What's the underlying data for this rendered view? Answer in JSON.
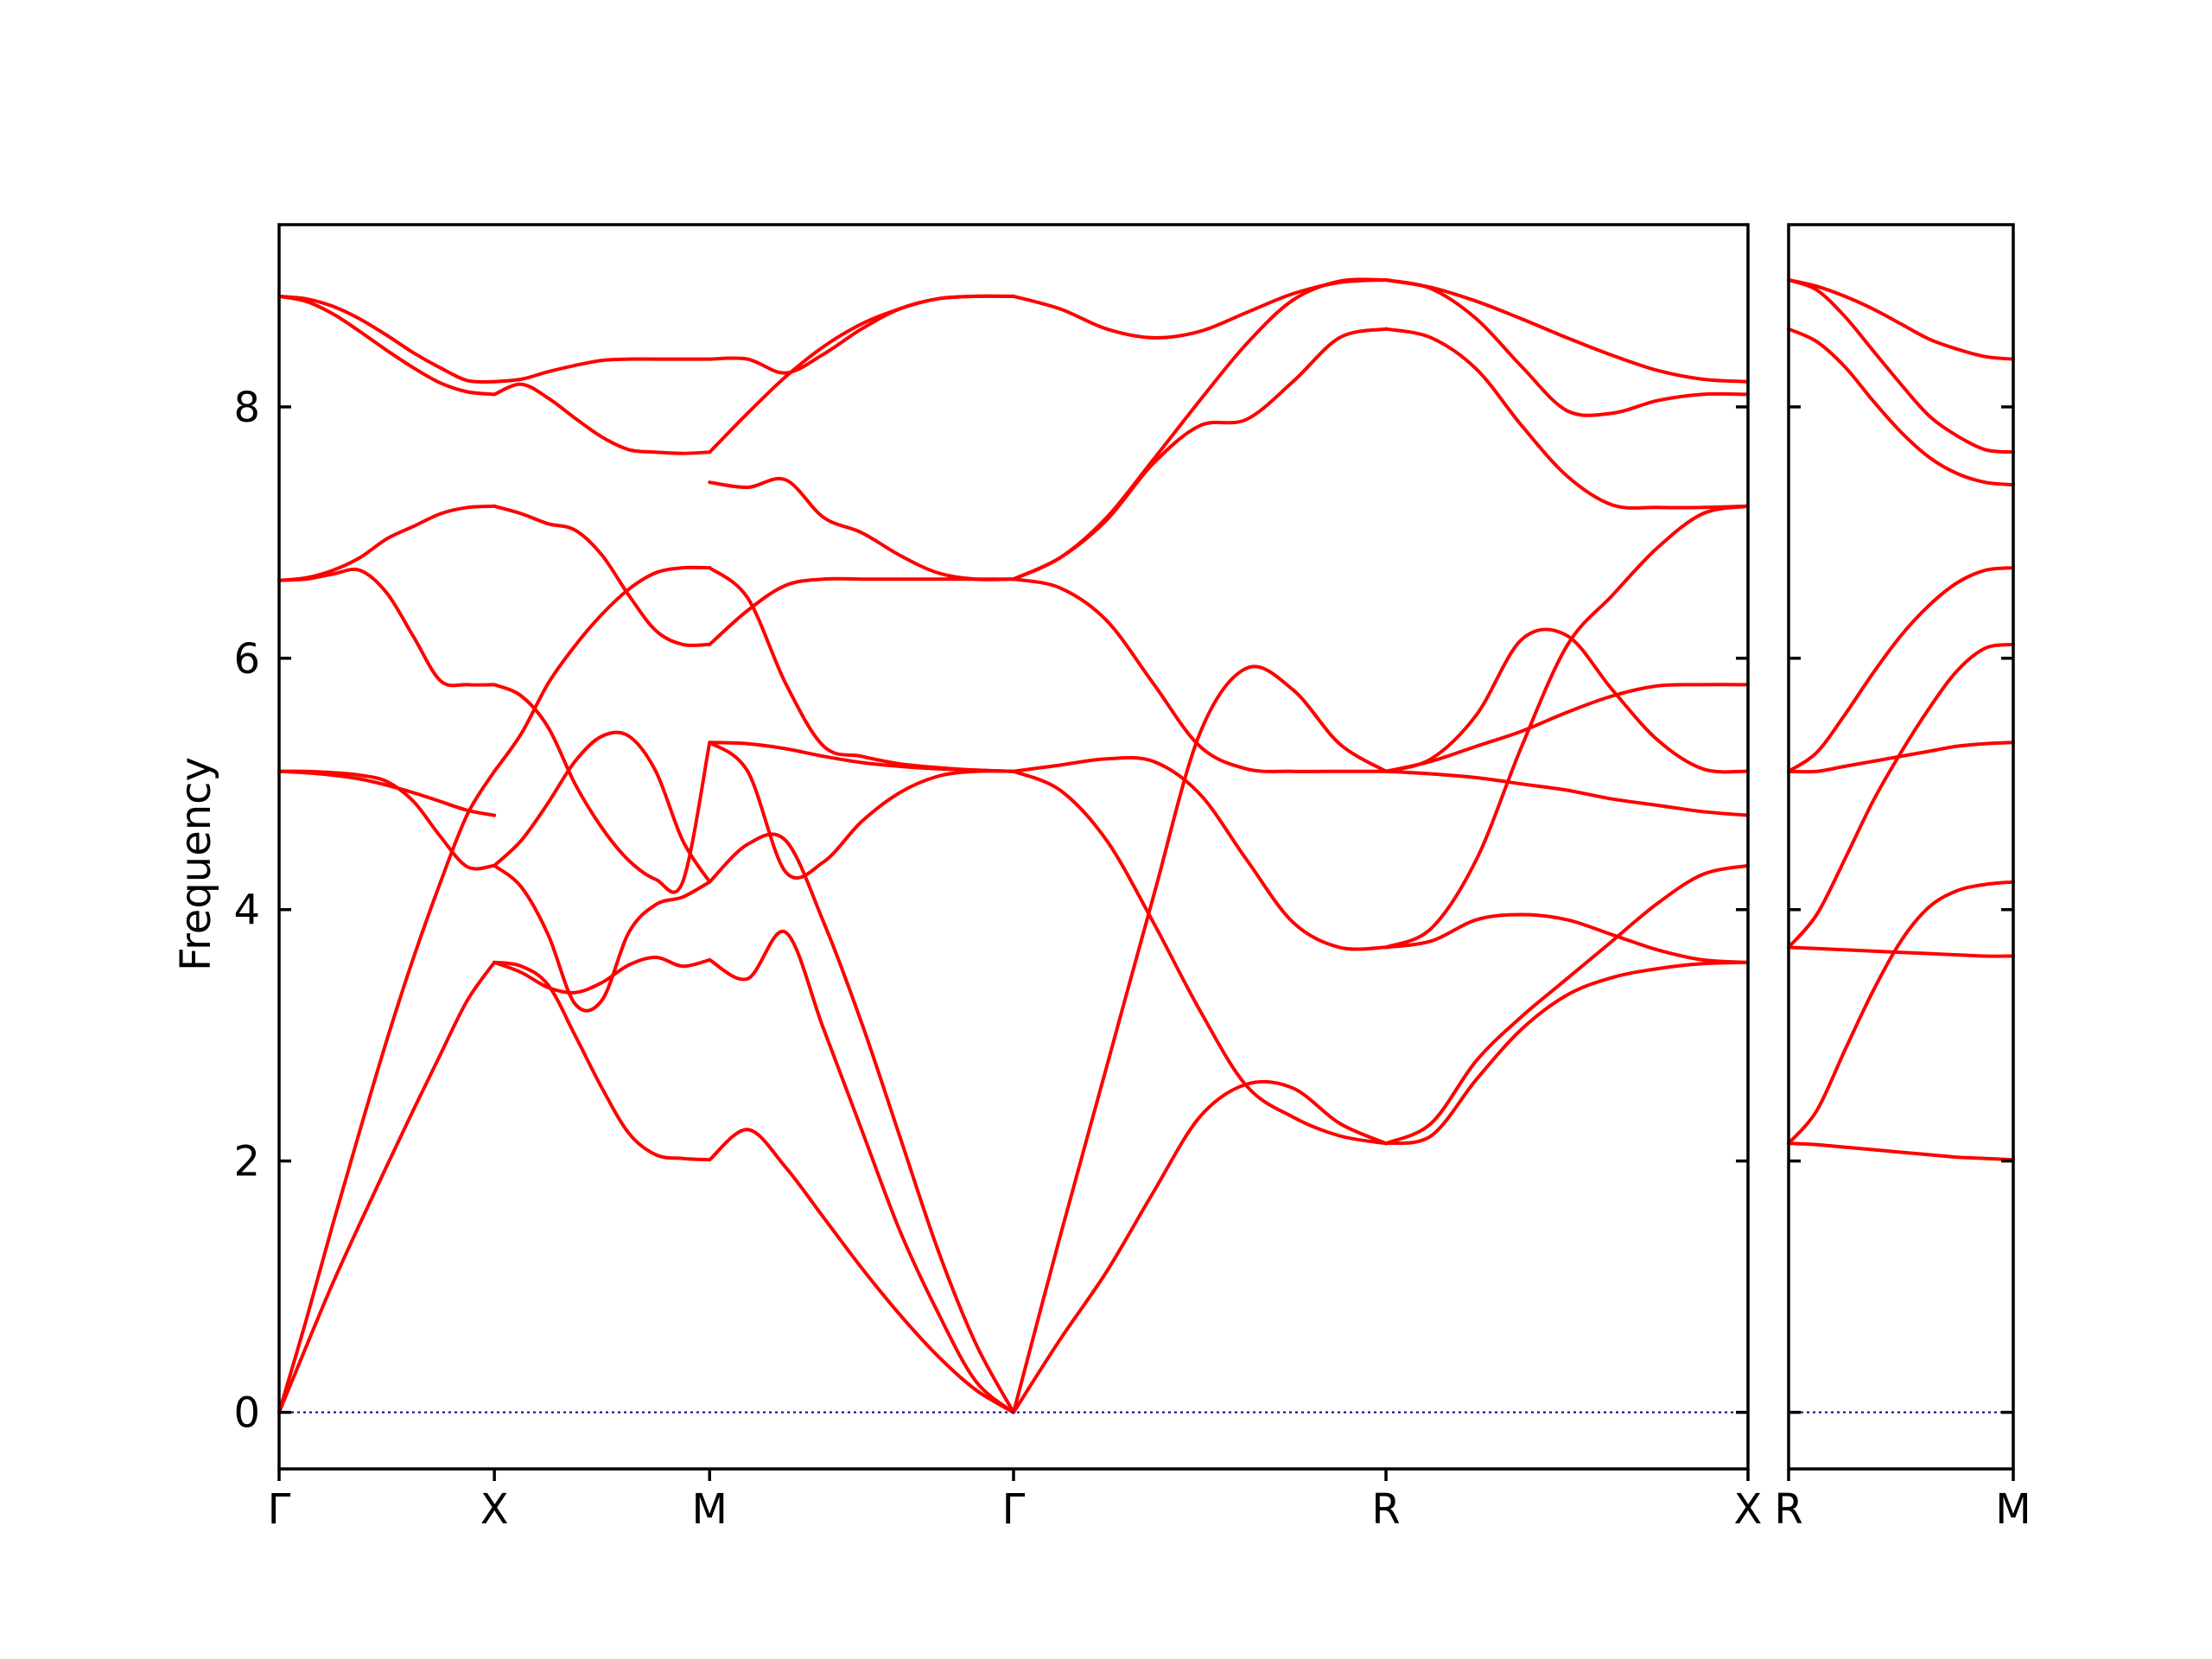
{
  "chart_data": {
    "type": "line",
    "ylabel": "Frequency",
    "ylim": [
      -0.45,
      9.45
    ],
    "yticks": [
      0,
      2,
      4,
      6,
      8
    ],
    "grid": false,
    "legend": "none",
    "colors": {
      "bands": "#ff0000",
      "zero_line": "#00008b",
      "axes": "#000000"
    },
    "panels": [
      {
        "name": "left",
        "x_range": [
          0,
          4
        ],
        "xtick_positions": [
          0,
          0.5862,
          1.1724,
          2.0,
          3.0142,
          4.0
        ],
        "xtick_labels": [
          "Γ",
          "X",
          "M",
          "Γ",
          "R",
          "X"
        ],
        "segments": [
          {
            "x": [
              0,
              0.0733,
              0.1466,
              0.2198,
              0.2931,
              0.3664,
              0.4397,
              0.5129,
              0.5862
            ],
            "bands": [
              [
                0.0,
                0.52,
                1.03,
                1.5,
                1.96,
                2.41,
                2.85,
                3.28,
                3.58
              ],
              [
                0.0,
                0.73,
                1.5,
                2.24,
                2.96,
                3.62,
                4.22,
                4.76,
                5.1
              ],
              [
                5.1,
                5.09,
                5.07,
                5.04,
                4.99,
                4.93,
                4.86,
                4.79,
                4.75
              ],
              [
                5.1,
                5.1,
                5.09,
                5.07,
                5.02,
                4.86,
                4.58,
                4.34,
                4.35
              ],
              [
                6.62,
                6.63,
                6.67,
                6.7,
                6.52,
                6.17,
                5.82,
                5.79,
                5.79
              ],
              [
                6.62,
                6.64,
                6.7,
                6.8,
                6.95,
                7.05,
                7.15,
                7.2,
                7.21
              ],
              [
                8.88,
                8.84,
                8.74,
                8.6,
                8.45,
                8.31,
                8.19,
                8.12,
                8.1
              ],
              [
                8.88,
                8.86,
                8.8,
                8.7,
                8.57,
                8.43,
                8.31,
                8.21,
                8.2
              ]
            ]
          },
          {
            "x": [
              0.5862,
              0.6595,
              0.7328,
              0.806,
              0.8793,
              0.9526,
              1.0259,
              1.0991,
              1.1724
            ],
            "bands": [
              [
                3.58,
                3.5,
                3.38,
                3.34,
                3.42,
                3.56,
                3.62,
                3.55,
                3.6
              ],
              [
                3.58,
                3.55,
                3.4,
                3.0,
                2.58,
                2.22,
                2.05,
                2.02,
                2.01
              ],
              [
                4.35,
                4.18,
                3.8,
                3.25,
                3.28,
                3.82,
                4.04,
                4.1,
                4.22
              ],
              [
                4.35,
                4.55,
                4.85,
                5.18,
                5.38,
                5.38,
                5.1,
                4.55,
                4.22
              ],
              [
                5.1,
                5.4,
                5.8,
                6.1,
                6.35,
                6.55,
                6.68,
                6.72,
                6.72
              ],
              [
                5.79,
                5.7,
                5.45,
                5.0,
                4.65,
                4.39,
                4.24,
                4.22,
                5.33
              ],
              [
                7.21,
                7.15,
                7.07,
                7.02,
                6.82,
                6.5,
                6.22,
                6.11,
                6.11
              ],
              [
                8.1,
                8.18,
                8.07,
                7.91,
                7.76,
                7.66,
                7.64,
                7.63,
                7.64
              ],
              [
                8.2,
                8.22,
                8.28,
                8.33,
                8.37,
                8.38,
                8.38,
                8.38,
                8.38
              ]
            ]
          },
          {
            "x": [
              1.1724,
              1.2759,
              1.3794,
              1.4828,
              1.5862,
              1.6897,
              1.7931,
              1.8966,
              2.0
            ],
            "bands": [
              [
                2.01,
                2.25,
                1.95,
                1.55,
                1.15,
                0.78,
                0.45,
                0.18,
                0.0
              ],
              [
                3.6,
                3.45,
                3.82,
                3.05,
                2.25,
                1.45,
                0.8,
                0.25,
                0.0
              ],
              [
                4.22,
                4.52,
                4.55,
                3.9,
                3.1,
                2.2,
                1.3,
                0.55,
                0.0
              ],
              [
                5.33,
                5.1,
                4.3,
                4.38,
                4.7,
                4.93,
                5.06,
                5.1,
                5.1
              ],
              [
                5.33,
                5.32,
                5.28,
                5.22,
                5.17,
                5.14,
                5.12,
                5.11,
                5.1
              ],
              [
                6.72,
                6.48,
                5.8,
                5.3,
                5.22,
                5.16,
                5.13,
                5.11,
                5.1
              ],
              [
                6.11,
                6.38,
                6.58,
                6.63,
                6.63,
                6.63,
                6.63,
                6.63,
                6.63
              ],
              [
                7.64,
                7.95,
                8.24,
                8.48,
                8.66,
                8.78,
                8.86,
                8.88,
                8.88
              ],
              [
                7.4,
                7.36,
                7.42,
                7.12,
                7.0,
                6.82,
                6.68,
                6.63,
                6.63
              ],
              [
                8.38,
                8.38,
                8.27,
                8.42,
                8.62,
                8.78,
                8.86,
                8.88,
                8.88
              ]
            ]
          },
          {
            "x": [
              2.0,
              2.1268,
              2.2536,
              2.3804,
              2.5071,
              2.6339,
              2.7607,
              2.8875,
              3.0142
            ],
            "bands": [
              [
                0.0,
                0.58,
                1.12,
                1.75,
                2.35,
                2.61,
                2.58,
                2.3,
                2.14
              ],
              [
                0.0,
                1.4,
                2.75,
                4.1,
                5.4,
                5.92,
                5.75,
                5.32,
                5.1
              ],
              [
                5.1,
                4.95,
                4.55,
                3.9,
                3.2,
                2.6,
                2.35,
                2.2,
                2.14
              ],
              [
                5.1,
                5.15,
                5.2,
                5.18,
                4.92,
                4.4,
                3.9,
                3.7,
                3.7
              ],
              [
                6.63,
                6.56,
                6.3,
                5.8,
                5.3,
                5.12,
                5.1,
                5.1,
                5.1
              ],
              [
                6.63,
                6.8,
                7.1,
                7.55,
                7.85,
                7.9,
                8.2,
                8.55,
                8.62
              ],
              [
                6.63,
                6.8,
                7.12,
                7.58,
                8.05,
                8.5,
                8.85,
                9.0,
                9.01
              ],
              [
                8.88,
                8.78,
                8.62,
                8.55,
                8.6,
                8.75,
                8.9,
                8.99,
                9.01
              ]
            ]
          },
          {
            "x": [
              3.0142,
              3.1374,
              3.2607,
              3.3839,
              3.5071,
              3.6303,
              3.7536,
              3.8768,
              4.0
            ],
            "bands": [
              [
                2.14,
                2.2,
                2.65,
                3.05,
                3.32,
                3.46,
                3.53,
                3.57,
                3.58
              ],
              [
                2.14,
                2.3,
                2.8,
                3.15,
                3.45,
                3.75,
                4.05,
                4.28,
                4.35
              ],
              [
                3.7,
                3.75,
                3.92,
                3.96,
                3.92,
                3.8,
                3.68,
                3.6,
                3.58
              ],
              [
                3.7,
                3.85,
                4.4,
                5.3,
                6.1,
                6.5,
                6.88,
                7.15,
                7.21
              ],
              [
                5.1,
                5.08,
                5.05,
                5.0,
                4.95,
                4.88,
                4.83,
                4.78,
                4.75
              ],
              [
                5.1,
                5.2,
                5.55,
                6.15,
                6.18,
                5.75,
                5.35,
                5.12,
                5.1
              ],
              [
                5.1,
                5.18,
                5.3,
                5.42,
                5.57,
                5.7,
                5.78,
                5.79,
                5.79
              ],
              [
                8.62,
                8.55,
                8.3,
                7.85,
                7.45,
                7.22,
                7.2,
                7.2,
                7.21
              ],
              [
                9.01,
                8.94,
                8.7,
                8.32,
                7.97,
                7.95,
                8.05,
                8.1,
                8.1
              ],
              [
                9.01,
                8.95,
                8.84,
                8.7,
                8.55,
                8.41,
                8.29,
                8.22,
                8.2
              ]
            ]
          }
        ]
      },
      {
        "name": "right",
        "x_range": [
          0,
          1
        ],
        "xtick_positions": [
          0,
          1
        ],
        "xtick_labels": [
          "R",
          "M"
        ],
        "segments": [
          {
            "x": [
              0,
              0.125,
              0.25,
              0.375,
              0.5,
              0.625,
              0.75,
              0.875,
              1.0
            ],
            "bands": [
              [
                2.14,
                2.13,
                2.11,
                2.09,
                2.07,
                2.05,
                2.03,
                2.02,
                2.01
              ],
              [
                2.14,
                2.4,
                2.88,
                3.35,
                3.75,
                4.02,
                4.15,
                4.2,
                4.22
              ],
              [
                3.7,
                3.69,
                3.68,
                3.67,
                3.66,
                3.65,
                3.64,
                3.63,
                3.63
              ],
              [
                3.7,
                3.96,
                4.4,
                4.86,
                5.25,
                5.6,
                5.9,
                6.08,
                6.11
              ],
              [
                5.1,
                5.1,
                5.14,
                5.18,
                5.22,
                5.26,
                5.3,
                5.32,
                5.33
              ],
              [
                5.1,
                5.25,
                5.55,
                5.88,
                6.18,
                6.42,
                6.6,
                6.7,
                6.72
              ],
              [
                8.62,
                8.52,
                8.32,
                8.05,
                7.8,
                7.6,
                7.47,
                7.4,
                7.38
              ],
              [
                9.01,
                8.93,
                8.72,
                8.45,
                8.18,
                7.93,
                7.77,
                7.66,
                7.64
              ],
              [
                9.01,
                8.96,
                8.88,
                8.78,
                8.66,
                8.54,
                8.46,
                8.4,
                8.38
              ]
            ]
          }
        ]
      }
    ]
  }
}
